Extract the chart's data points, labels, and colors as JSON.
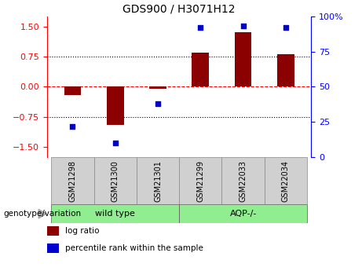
{
  "title": "GDS900 / H3071H12",
  "samples": [
    "GSM21298",
    "GSM21300",
    "GSM21301",
    "GSM21299",
    "GSM22033",
    "GSM22034"
  ],
  "log_ratios": [
    -0.2,
    -0.95,
    -0.05,
    0.85,
    1.35,
    0.8
  ],
  "percentile_ranks": [
    22,
    10,
    38,
    92,
    93,
    92
  ],
  "bar_color": "#8B0000",
  "dot_color": "#0000CD",
  "ylim_left": [
    -1.75,
    1.75
  ],
  "ylim_right": [
    0,
    100
  ],
  "yticks_left": [
    -1.5,
    -0.75,
    0,
    0.75,
    1.5
  ],
  "yticks_right": [
    0,
    25,
    50,
    75,
    100
  ],
  "legend_items": [
    {
      "label": "log ratio",
      "color": "#8B0000"
    },
    {
      "label": "percentile rank within the sample",
      "color": "#0000CD"
    }
  ],
  "genotype_label": "genotype/variation",
  "group_labels": [
    "wild type",
    "AQP-/-"
  ],
  "group_colors": [
    "#90EE90",
    "#90EE90"
  ],
  "sample_bg_color": "#d0d0d0",
  "group_bg_color": "#90EE90"
}
